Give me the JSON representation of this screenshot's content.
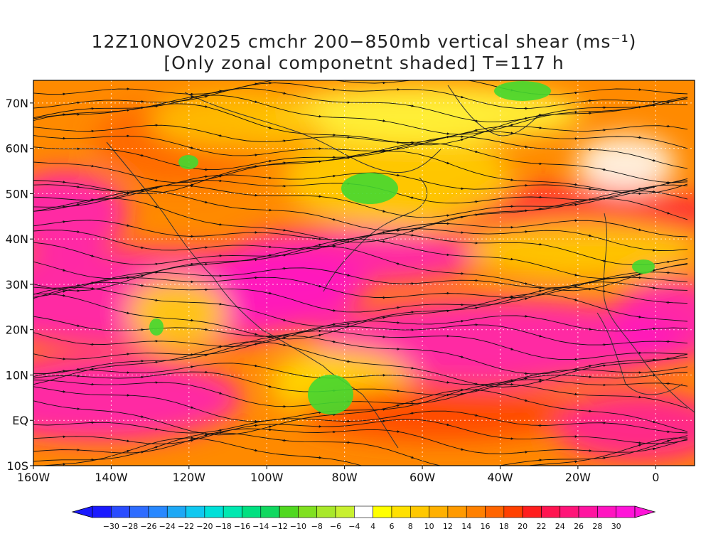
{
  "title": {
    "line1": "12Z10NOV2025 cmchr 200−850mb vertical shear (ms⁻¹)",
    "line2": "[Only zonal componetnt shaded] T=117 h"
  },
  "map": {
    "lat_range": [
      -10,
      75
    ],
    "lon_range": [
      -160,
      10
    ],
    "lat_ticks": [
      {
        "value": 70,
        "label": "70N"
      },
      {
        "value": 60,
        "label": "60N"
      },
      {
        "value": 50,
        "label": "50N"
      },
      {
        "value": 40,
        "label": "40N"
      },
      {
        "value": 30,
        "label": "30N"
      },
      {
        "value": 20,
        "label": "20N"
      },
      {
        "value": 10,
        "label": "10N"
      },
      {
        "value": 0,
        "label": "EQ"
      },
      {
        "value": -10,
        "label": "10S"
      }
    ],
    "lon_ticks": [
      {
        "value": -160,
        "label": "160W"
      },
      {
        "value": -140,
        "label": "140W"
      },
      {
        "value": -120,
        "label": "120W"
      },
      {
        "value": -100,
        "label": "100W"
      },
      {
        "value": -80,
        "label": "80W"
      },
      {
        "value": -60,
        "label": "60W"
      },
      {
        "value": -40,
        "label": "40W"
      },
      {
        "value": -20,
        "label": "20W"
      },
      {
        "value": 0,
        "label": "0"
      }
    ],
    "grid": true
  },
  "colorbar": {
    "labels": [
      "−30",
      "−28",
      "−26",
      "−24",
      "−22",
      "−20",
      "−18",
      "−16",
      "−14",
      "−12",
      "−10",
      "−8",
      "−6",
      "−4",
      "4",
      "6",
      "8",
      "10",
      "12",
      "14",
      "16",
      "18",
      "20",
      "22",
      "24",
      "26",
      "28",
      "30"
    ],
    "colors": [
      "#1a1aff",
      "#2a4cff",
      "#2e6cff",
      "#2888ff",
      "#1ea8f5",
      "#10c8f0",
      "#00e0d8",
      "#00e8b0",
      "#00e080",
      "#10d860",
      "#50d820",
      "#80e020",
      "#a8e82a",
      "#c8f030",
      "#ffffff",
      "#ffff00",
      "#ffe000",
      "#ffc800",
      "#ffb000",
      "#ff9a00",
      "#ff8000",
      "#ff6400",
      "#ff4000",
      "#ff1e1e",
      "#ff1450",
      "#ff1478",
      "#ff14a0",
      "#ff14c0",
      "#ff14d8"
    ]
  }
}
